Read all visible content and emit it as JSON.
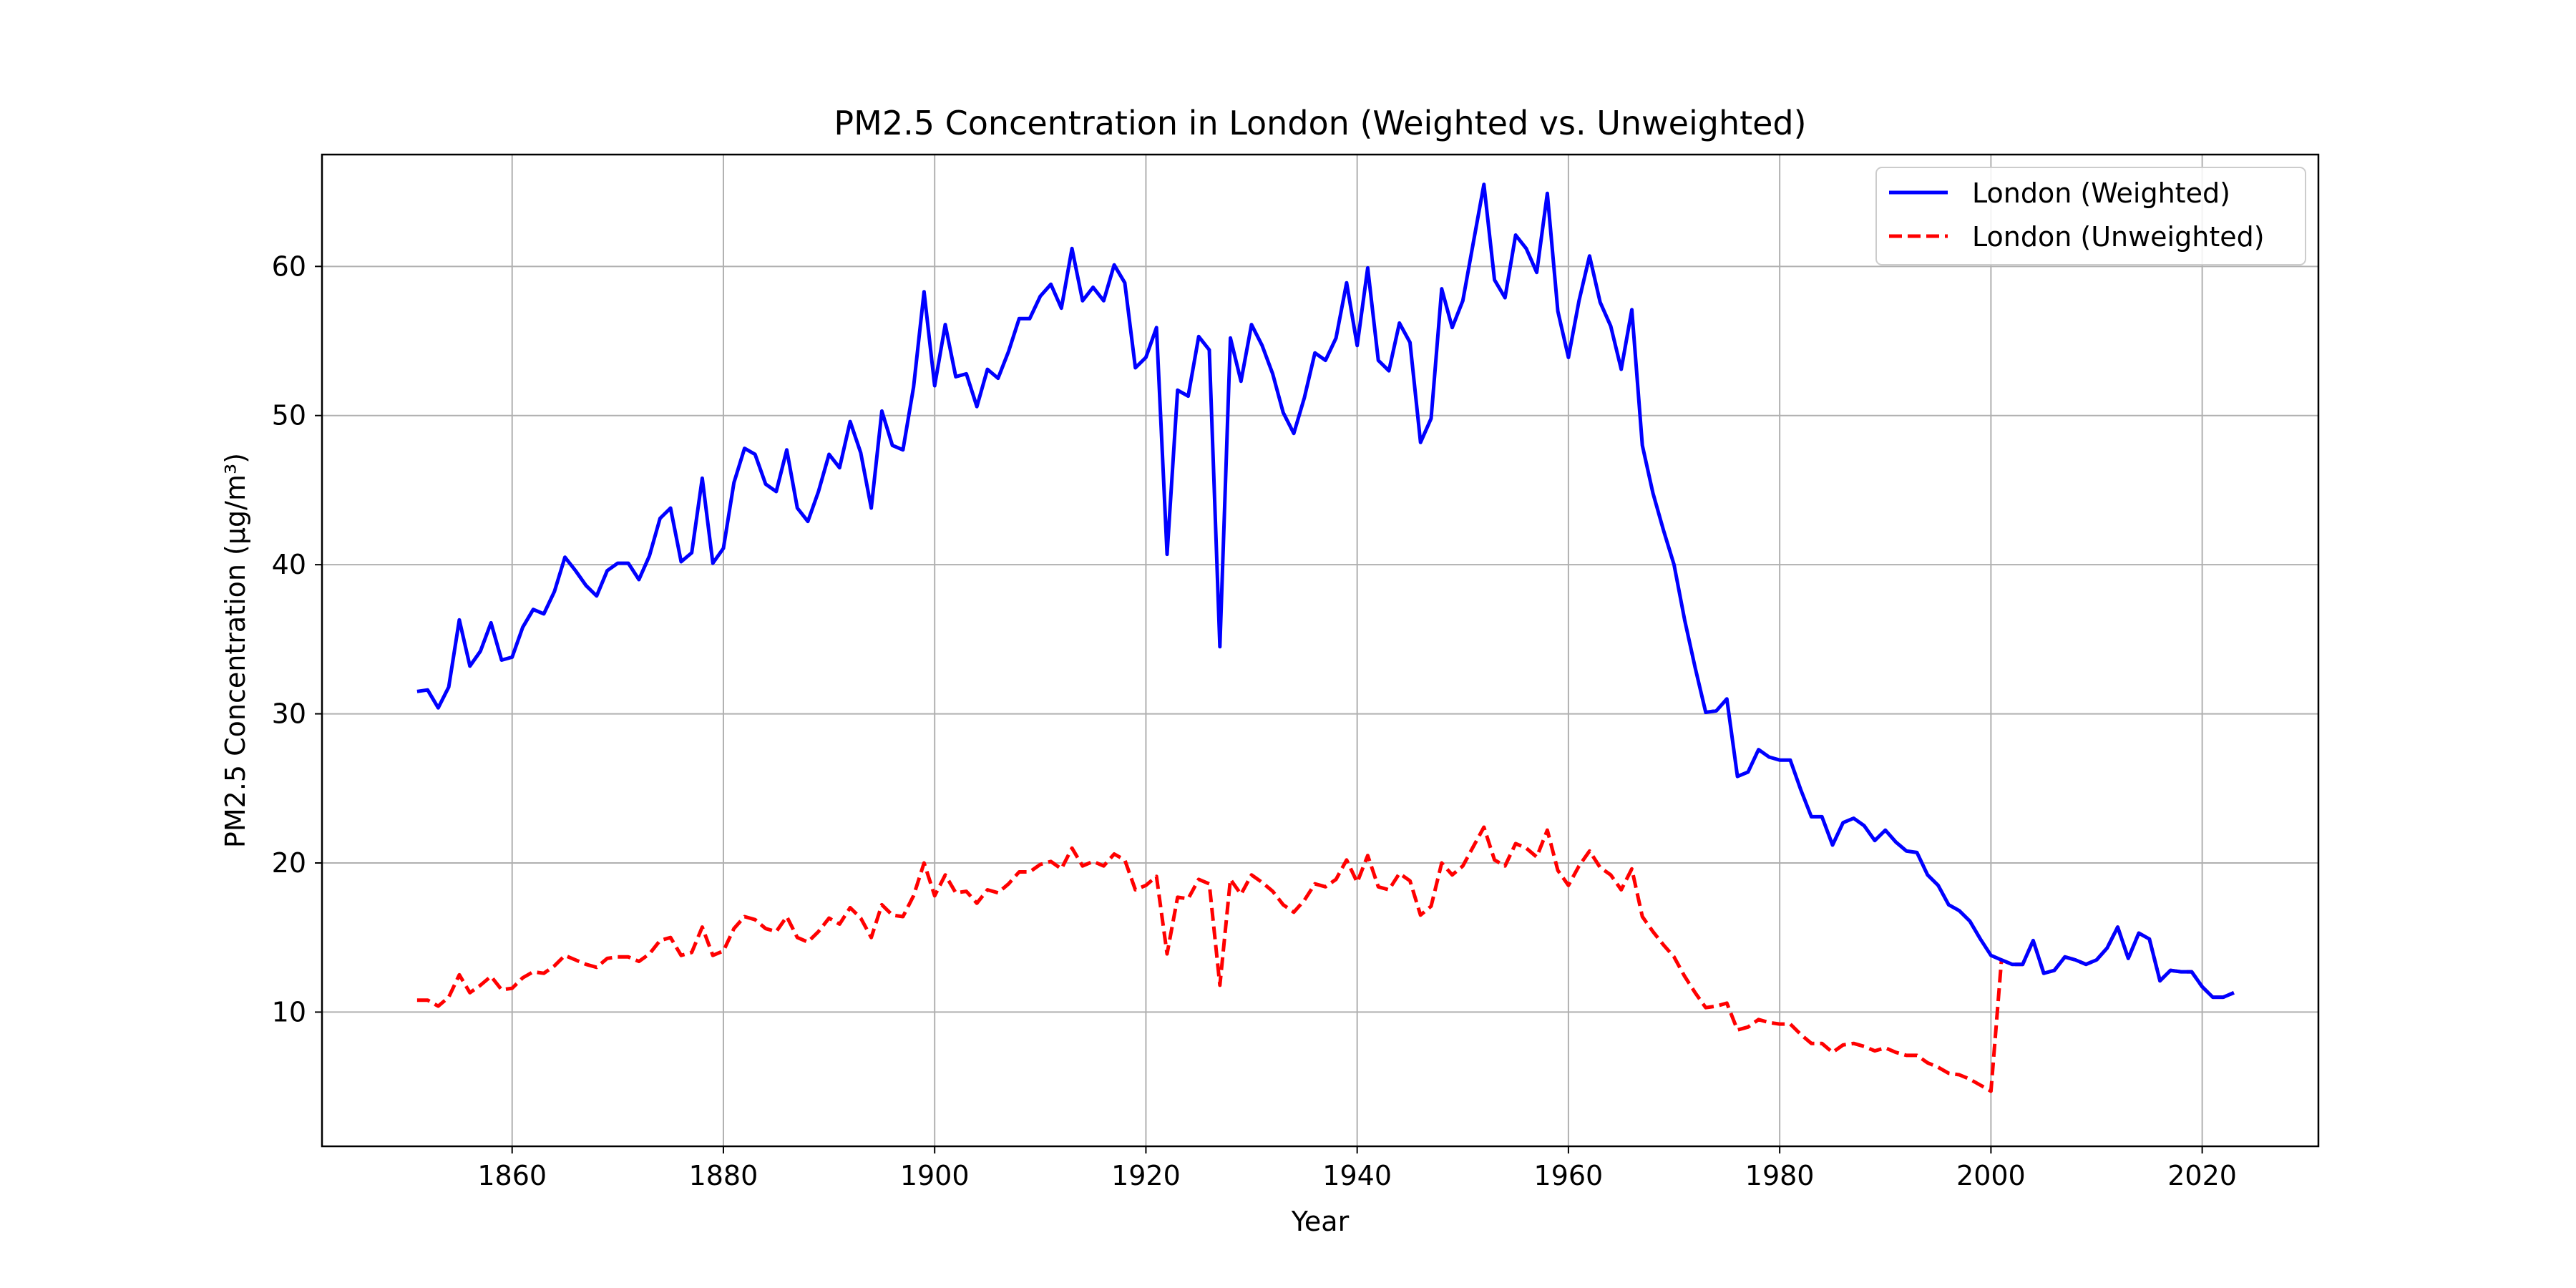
{
  "chart_data": {
    "type": "line",
    "title": "PM2.5 Concentration in London (Weighted vs. Unweighted)",
    "xlabel": "Year",
    "ylabel": "PM2.5 Concentration (µg/m³)",
    "xlim": [
      1842,
      2031
    ],
    "ylim": [
      1,
      67.5
    ],
    "xticks": [
      1860,
      1880,
      1900,
      1920,
      1940,
      1960,
      1980,
      2000,
      2020
    ],
    "yticks": [
      10,
      20,
      30,
      40,
      50,
      60
    ],
    "grid": true,
    "legend_position": "top-right",
    "x": [
      1851,
      1852,
      1853,
      1854,
      1855,
      1856,
      1857,
      1858,
      1859,
      1860,
      1861,
      1862,
      1863,
      1864,
      1865,
      1866,
      1867,
      1868,
      1869,
      1870,
      1871,
      1872,
      1873,
      1874,
      1875,
      1876,
      1877,
      1878,
      1879,
      1880,
      1881,
      1882,
      1883,
      1884,
      1885,
      1886,
      1887,
      1888,
      1889,
      1890,
      1891,
      1892,
      1893,
      1894,
      1895,
      1896,
      1897,
      1898,
      1899,
      1900,
      1901,
      1902,
      1903,
      1904,
      1905,
      1906,
      1907,
      1908,
      1909,
      1910,
      1911,
      1912,
      1913,
      1914,
      1915,
      1916,
      1917,
      1918,
      1919,
      1920,
      1921,
      1922,
      1923,
      1924,
      1925,
      1926,
      1927,
      1928,
      1929,
      1930,
      1931,
      1932,
      1933,
      1934,
      1935,
      1936,
      1937,
      1938,
      1939,
      1940,
      1941,
      1942,
      1943,
      1944,
      1945,
      1946,
      1947,
      1948,
      1949,
      1950,
      1951,
      1952,
      1953,
      1954,
      1955,
      1956,
      1957,
      1958,
      1959,
      1960,
      1961,
      1962,
      1963,
      1964,
      1965,
      1966,
      1967,
      1968,
      1969,
      1970,
      1971,
      1972,
      1973,
      1974,
      1975,
      1976,
      1977,
      1978,
      1979,
      1980,
      1981,
      1982,
      1983,
      1984,
      1985,
      1986,
      1987,
      1988,
      1989,
      1990,
      1991,
      1992,
      1993,
      1994,
      1995,
      1996,
      1997,
      1998,
      1999,
      2000,
      2001,
      2002,
      2003,
      2004,
      2005,
      2006,
      2007,
      2008,
      2009,
      2010,
      2011,
      2012,
      2013,
      2014,
      2015,
      2016,
      2017,
      2018,
      2019,
      2020,
      2021,
      2022,
      2023
    ],
    "series": [
      {
        "name": "London (Weighted)",
        "color": "#0000ff",
        "style": "solid",
        "values": [
          31.5,
          31.6,
          30.4,
          31.8,
          36.3,
          33.2,
          34.2,
          36.1,
          33.6,
          33.8,
          35.8,
          37.0,
          36.7,
          38.2,
          40.5,
          39.6,
          38.6,
          37.9,
          39.6,
          40.1,
          40.1,
          39.0,
          40.6,
          43.1,
          43.8,
          40.2,
          40.8,
          45.8,
          40.1,
          41.1,
          45.5,
          47.8,
          47.4,
          45.4,
          44.9,
          47.7,
          43.8,
          42.9,
          44.9,
          47.4,
          46.5,
          49.6,
          47.5,
          43.8,
          50.3,
          48.0,
          47.7,
          51.9,
          58.3,
          52.0,
          56.1,
          52.6,
          52.8,
          50.6,
          53.1,
          52.5,
          54.3,
          56.5,
          56.5,
          58.0,
          58.8,
          57.2,
          61.2,
          57.7,
          58.6,
          57.7,
          60.1,
          58.9,
          53.2,
          53.9,
          55.9,
          40.7,
          51.7,
          51.3,
          55.3,
          54.4,
          34.5,
          55.2,
          52.3,
          56.1,
          54.7,
          52.8,
          50.2,
          48.8,
          51.2,
          54.2,
          53.7,
          55.2,
          58.9,
          54.7,
          59.9,
          53.7,
          53.0,
          56.2,
          54.9,
          48.2,
          49.8,
          58.5,
          55.9,
          57.7,
          61.6,
          65.5,
          59.1,
          57.9,
          62.1,
          61.2,
          59.6,
          64.9,
          57.0,
          53.9,
          57.7,
          60.7,
          57.6,
          56.0,
          53.1,
          57.1,
          48.0,
          44.8,
          42.3,
          40.0,
          36.3,
          33.1,
          30.1,
          30.2,
          31.0,
          25.8,
          26.1,
          27.6,
          27.1,
          26.9,
          26.9,
          24.9,
          23.1,
          23.1,
          21.2,
          22.7,
          23.0,
          22.5,
          21.5,
          22.2,
          21.4,
          20.8,
          20.7,
          19.2,
          18.5,
          17.2,
          16.8,
          16.1,
          14.9,
          13.8,
          13.5,
          13.2,
          13.2,
          14.8,
          12.6,
          12.8,
          13.7,
          13.5,
          13.2,
          13.5,
          14.3,
          15.7,
          13.6,
          15.3,
          14.9,
          12.1,
          12.8,
          12.7,
          12.7,
          11.7,
          11.0,
          11.0,
          11.3
        ]
      },
      {
        "name": "London (Unweighted)",
        "color": "#ff0000",
        "style": "dashed",
        "values": [
          10.8,
          10.8,
          10.4,
          11.0,
          12.5,
          11.3,
          11.8,
          12.4,
          11.5,
          11.6,
          12.3,
          12.7,
          12.6,
          13.1,
          13.8,
          13.5,
          13.2,
          13.0,
          13.6,
          13.7,
          13.7,
          13.4,
          13.9,
          14.8,
          15.0,
          13.8,
          14.0,
          15.7,
          13.8,
          14.1,
          15.6,
          16.4,
          16.2,
          15.6,
          15.4,
          16.4,
          15.0,
          14.7,
          15.4,
          16.3,
          15.9,
          17.0,
          16.3,
          15.0,
          17.2,
          16.5,
          16.4,
          17.8,
          20.0,
          17.8,
          19.2,
          18.0,
          18.1,
          17.3,
          18.2,
          18.0,
          18.6,
          19.4,
          19.4,
          19.9,
          20.1,
          19.6,
          21.0,
          19.8,
          20.1,
          19.8,
          20.6,
          20.2,
          18.2,
          18.5,
          19.1,
          13.9,
          17.7,
          17.6,
          18.9,
          18.6,
          11.8,
          18.9,
          17.9,
          19.2,
          18.7,
          18.1,
          17.2,
          16.7,
          17.5,
          18.6,
          18.4,
          18.9,
          20.2,
          18.7,
          20.5,
          18.4,
          18.2,
          19.3,
          18.8,
          16.5,
          17.1,
          20.0,
          19.2,
          19.8,
          21.1,
          22.4,
          20.2,
          19.8,
          21.3,
          21.0,
          20.4,
          22.2,
          19.5,
          18.5,
          19.8,
          20.8,
          19.7,
          19.2,
          18.2,
          19.6,
          16.4,
          15.4,
          14.5,
          13.7,
          12.4,
          11.3,
          10.3,
          10.4,
          10.6,
          8.8,
          9.0,
          9.5,
          9.3,
          9.2,
          9.2,
          8.5,
          7.9,
          7.9,
          7.3,
          7.8,
          7.9,
          7.7,
          7.4,
          7.6,
          7.3,
          7.1,
          7.1,
          6.6,
          6.3,
          5.9,
          5.8,
          5.5,
          5.1,
          4.7,
          13.5,
          13.2,
          13.2,
          14.8,
          12.6,
          12.8,
          13.7,
          13.5,
          13.2,
          13.5,
          14.3,
          15.7,
          13.6,
          15.3,
          14.9,
          12.1,
          12.8,
          12.7,
          12.7,
          11.7,
          11.0,
          11.0,
          11.3
        ]
      }
    ]
  }
}
